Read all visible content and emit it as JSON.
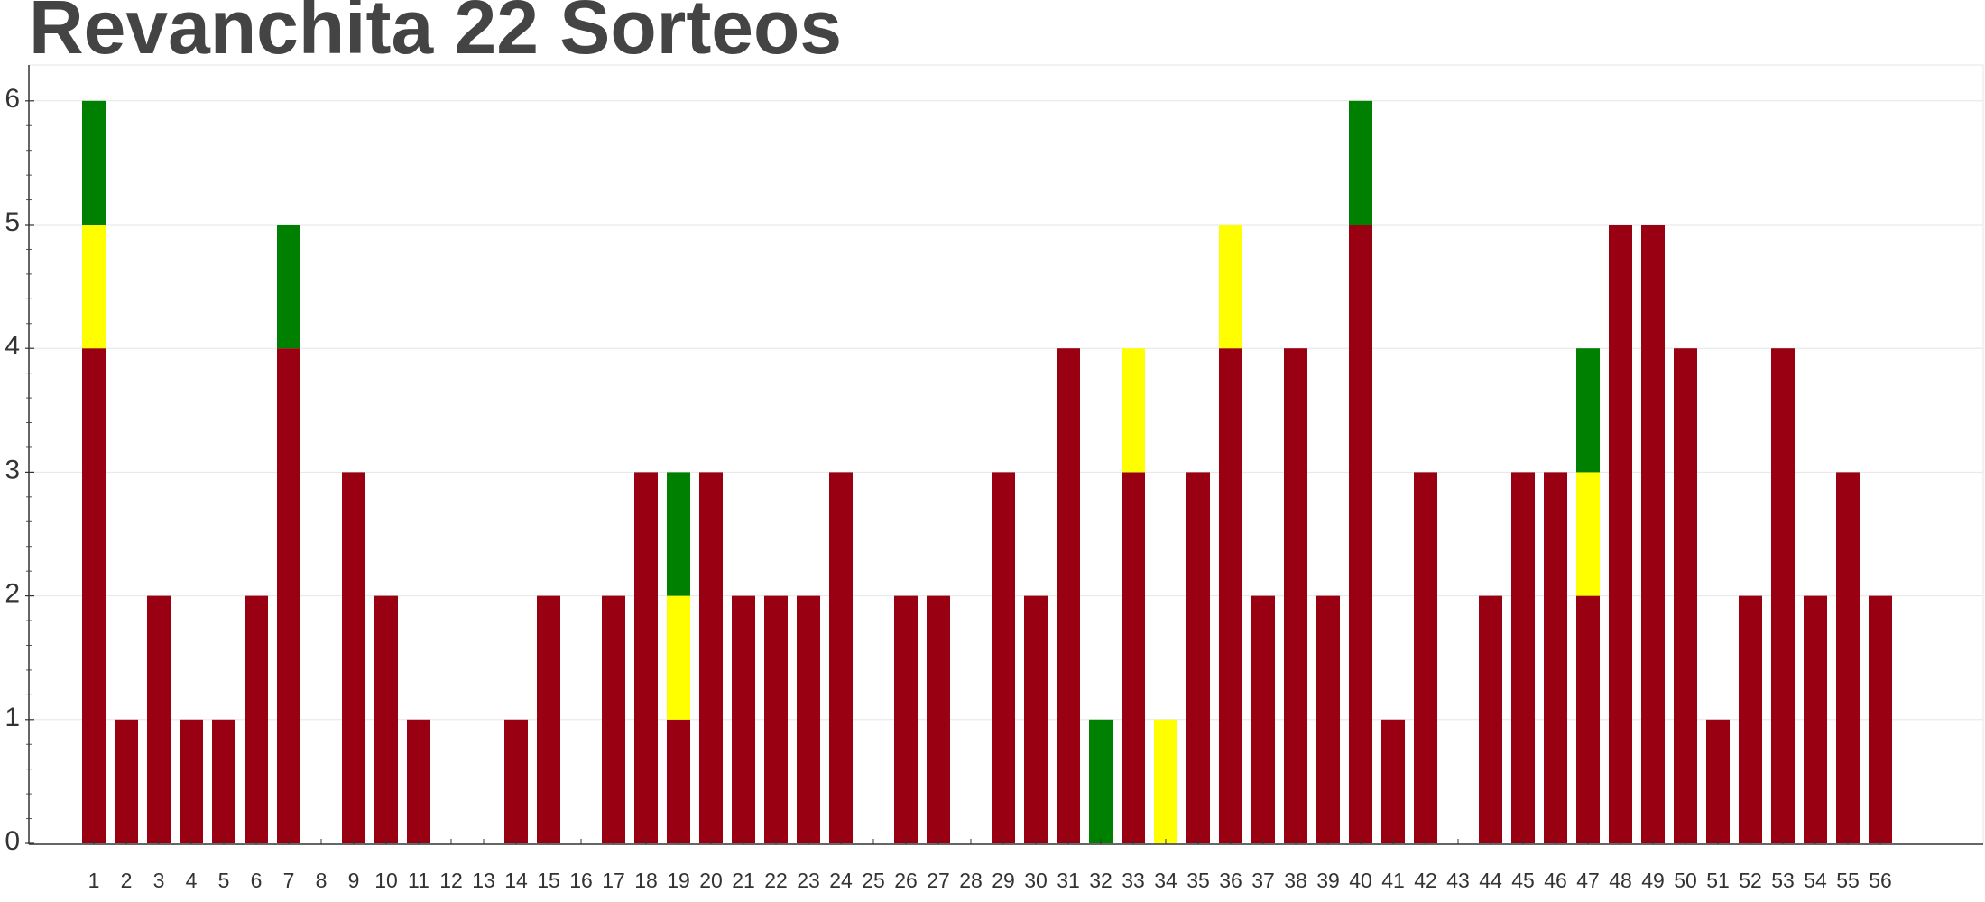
{
  "chart_data": {
    "type": "bar",
    "stacked": true,
    "title": "Revanchita 22 Sorteos",
    "xlabel": "",
    "ylabel": "",
    "ylim": [
      0,
      6.3
    ],
    "yticks": [
      "0",
      "1",
      "2",
      "3",
      "4",
      "5",
      "6"
    ],
    "grid": true,
    "categories": [
      "1",
      "2",
      "3",
      "4",
      "5",
      "6",
      "7",
      "8",
      "9",
      "10",
      "11",
      "12",
      "13",
      "14",
      "15",
      "16",
      "17",
      "18",
      "19",
      "20",
      "21",
      "22",
      "23",
      "24",
      "25",
      "26",
      "27",
      "28",
      "29",
      "30",
      "31",
      "32",
      "33",
      "34",
      "35",
      "36",
      "37",
      "38",
      "39",
      "40",
      "41",
      "42",
      "43",
      "44",
      "45",
      "46",
      "47",
      "48",
      "49",
      "50",
      "51",
      "52",
      "53",
      "54",
      "55",
      "56"
    ],
    "series": [
      {
        "color": "#990011",
        "values": [
          4,
          1,
          2,
          1,
          1,
          2,
          4,
          0,
          3,
          2,
          1,
          0,
          0,
          1,
          2,
          0,
          2,
          3,
          1,
          3,
          2,
          2,
          2,
          3,
          0,
          2,
          2,
          0,
          3,
          2,
          4,
          0,
          3,
          0,
          3,
          4,
          2,
          4,
          2,
          5,
          1,
          3,
          0,
          2,
          3,
          3,
          2,
          5,
          5,
          4,
          1,
          2,
          4,
          2,
          3,
          2
        ]
      },
      {
        "color": "#ffff00",
        "values": [
          1,
          0,
          0,
          0,
          0,
          0,
          0,
          0,
          0,
          0,
          0,
          0,
          0,
          0,
          0,
          0,
          0,
          0,
          1,
          0,
          0,
          0,
          0,
          0,
          0,
          0,
          0,
          0,
          0,
          0,
          0,
          0,
          1,
          1,
          0,
          1,
          0,
          0,
          0,
          0,
          0,
          0,
          0,
          0,
          0,
          0,
          1,
          0,
          0,
          0,
          0,
          0,
          0,
          0,
          0,
          0
        ]
      },
      {
        "color": "#008000",
        "values": [
          1,
          0,
          0,
          0,
          0,
          0,
          1,
          0,
          0,
          0,
          0,
          0,
          0,
          0,
          0,
          0,
          0,
          0,
          1,
          0,
          0,
          0,
          0,
          0,
          0,
          0,
          0,
          0,
          0,
          0,
          0,
          1,
          0,
          0,
          0,
          0,
          0,
          0,
          0,
          1,
          0,
          0,
          0,
          0,
          0,
          0,
          1,
          0,
          0,
          0,
          0,
          0,
          0,
          0,
          0,
          0
        ]
      }
    ]
  }
}
